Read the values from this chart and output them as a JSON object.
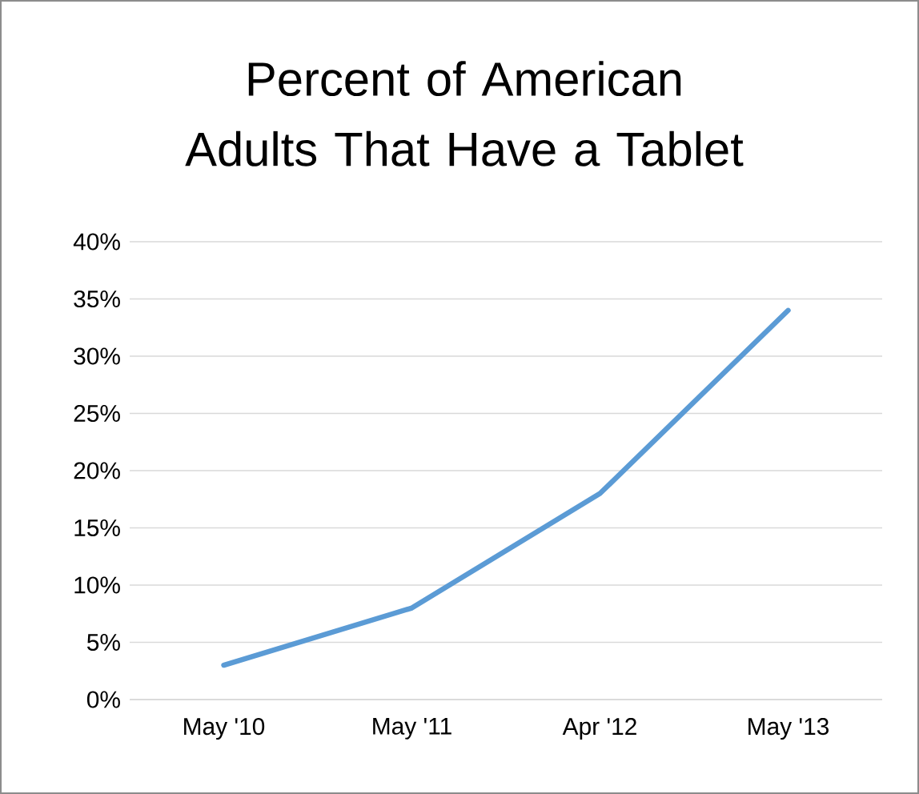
{
  "chart_data": {
    "type": "line",
    "title": "Percent of American Adults That Have a Tablet",
    "categories": [
      "May '10",
      "May '11",
      "Apr '12",
      "May '13"
    ],
    "series": [
      {
        "color": "#5b9bd5",
        "values": [
          3,
          8,
          18,
          34
        ]
      }
    ],
    "ylim": [
      0,
      40
    ],
    "yticks": [
      {
        "value": 0,
        "label": "0%"
      },
      {
        "value": 5,
        "label": "5%"
      },
      {
        "value": 10,
        "label": "10%"
      },
      {
        "value": 15,
        "label": "15%"
      },
      {
        "value": 20,
        "label": "20%"
      },
      {
        "value": 25,
        "label": "25%"
      },
      {
        "value": 30,
        "label": "30%"
      },
      {
        "value": 35,
        "label": "35%"
      },
      {
        "value": 40,
        "label": "40%"
      }
    ],
    "grid": "y",
    "marker": "none",
    "line_style": "solid"
  }
}
